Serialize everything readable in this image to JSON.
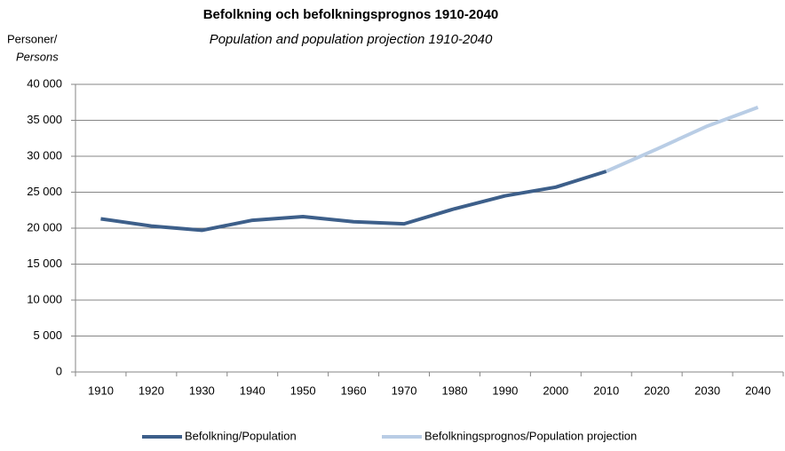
{
  "chart_data": {
    "type": "line",
    "title": "Befolkning och befolkningsprognos 1910-2040",
    "subtitle": "Population and population projection 1910-2040",
    "y_label": "Personer/",
    "y_label_en": "Persons",
    "categories": [
      "1910",
      "1920",
      "1930",
      "1940",
      "1950",
      "1960",
      "1970",
      "1980",
      "1990",
      "2000",
      "2010",
      "2020",
      "2030",
      "2040"
    ],
    "series": [
      {
        "name": "Befolkning/Population",
        "color": "#3d5f8a",
        "values": [
          21300,
          20300,
          19700,
          21100,
          21600,
          20900,
          20600,
          22700,
          24500,
          25700,
          27900,
          null,
          null,
          null
        ]
      },
      {
        "name": "Befolkningsprognos/Population projection",
        "color": "#b9cde5",
        "values": [
          null,
          null,
          null,
          null,
          null,
          null,
          null,
          null,
          null,
          null,
          27900,
          31000,
          34200,
          36800
        ]
      }
    ],
    "ylim": [
      0,
      40000
    ],
    "yticks": [
      0,
      {
        "value": 5000,
        "label": "5 000"
      },
      {
        "value": 10000,
        "label": "10 000"
      },
      {
        "value": 15000,
        "label": "15 000"
      },
      {
        "value": 20000,
        "label": "20 000"
      },
      {
        "value": 25000,
        "label": "25 000"
      },
      {
        "value": 30000,
        "label": "30 000"
      },
      {
        "value": 35000,
        "label": "35 000"
      },
      {
        "value": 40000,
        "label": "40 000"
      }
    ],
    "grid": true,
    "legend": "bottom"
  }
}
